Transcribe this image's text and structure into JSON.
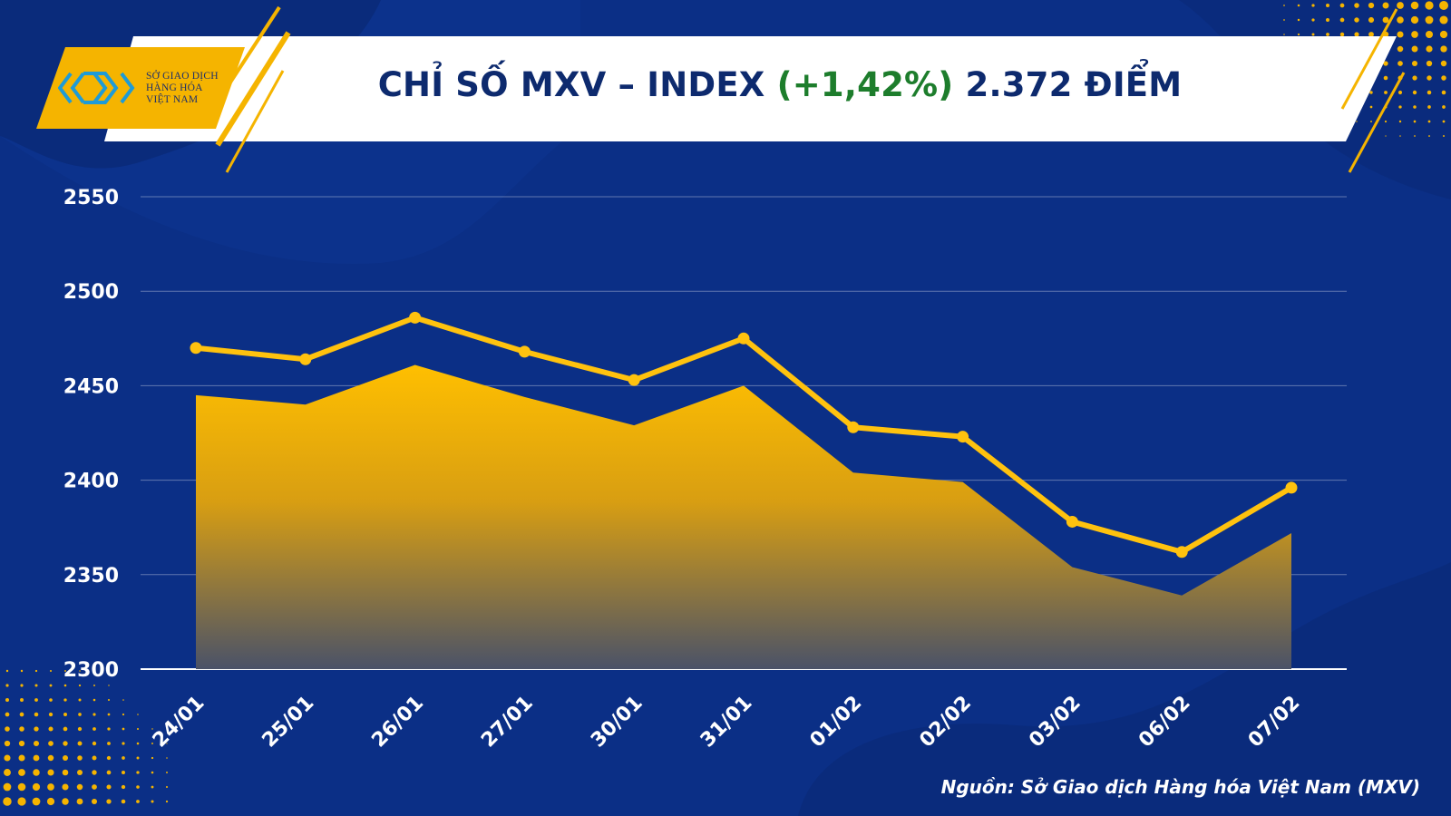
{
  "header": {
    "title_prefix": "CHỈ SỐ MXV – INDEX",
    "title_change": "(+1,42%)",
    "title_suffix": "2.372 ĐIỂM",
    "logo_lines": [
      "SỞ GIAO DỊCH",
      "HÀNG HÓA",
      "VIỆT NAM"
    ]
  },
  "source": "Nguồn: Sở Giao dịch Hàng hóa Việt Nam (MXV)",
  "colors": {
    "background": "#0b2f86",
    "accent_gold": "#f5b400",
    "title_navy": "#0d2a6e",
    "change_green": "#1d7d2c"
  },
  "icons": {
    "logo": "mxv-logo-icon"
  },
  "chart_data": {
    "type": "line",
    "categories": [
      "24/01",
      "25/01",
      "26/01",
      "27/01",
      "30/01",
      "31/01",
      "01/02",
      "02/02",
      "03/02",
      "06/02",
      "07/02"
    ],
    "series": [
      {
        "type": "line",
        "values": [
          2470,
          2464,
          2486,
          2468,
          2453,
          2475,
          2428,
          2423,
          2378,
          2362,
          2396
        ]
      },
      {
        "type": "area",
        "values": [
          2445,
          2440,
          2461,
          2444,
          2429,
          2450,
          2404,
          2399,
          2354,
          2339,
          2372
        ]
      }
    ],
    "ylim": [
      2300,
      2550
    ],
    "yticks": [
      2300,
      2350,
      2400,
      2450,
      2500,
      2550
    ],
    "grid": true
  }
}
